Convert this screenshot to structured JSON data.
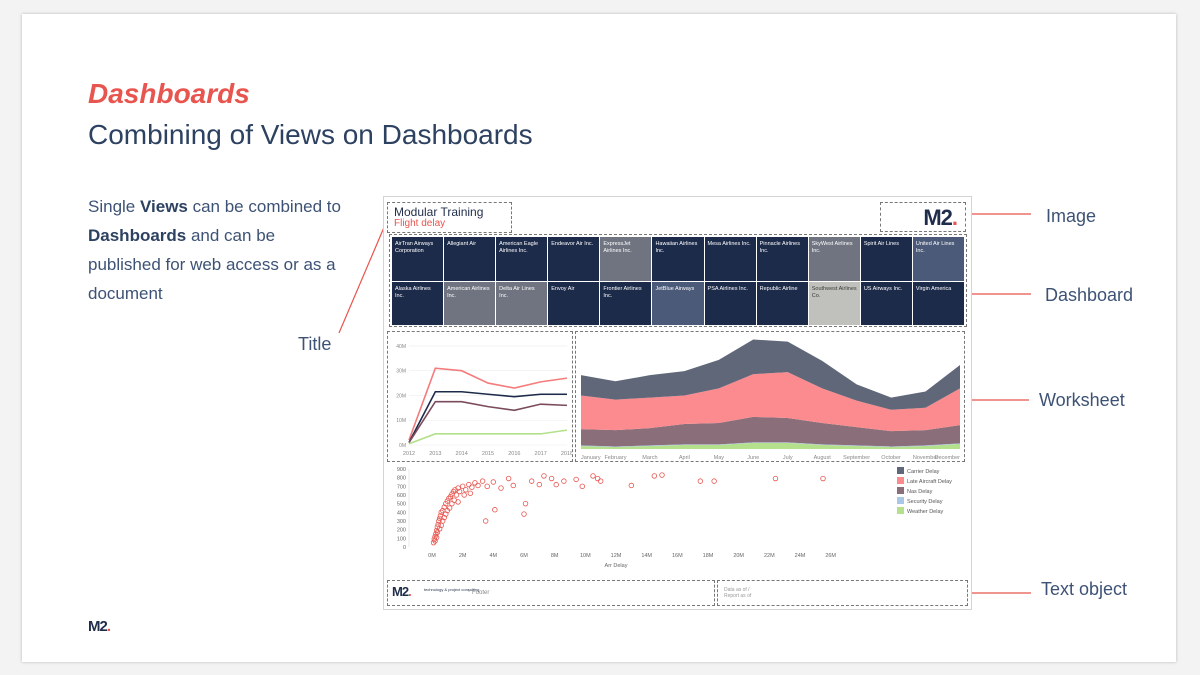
{
  "slide": {
    "kicker": "Dashboards",
    "title": "Combining of Views on Dashboards",
    "body": {
      "p1": "Single ",
      "b1": "Views",
      "p2": " can be combined to ",
      "b2": "Dashboards",
      "p3": " and can be published for web access or as a document"
    },
    "footer_logo": "M2",
    "footer_logo_dot": "."
  },
  "callouts": {
    "image": "Image",
    "dashboard": "Dashboard",
    "worksheet": "Worksheet",
    "text_object": "Text object",
    "title": "Title"
  },
  "dashboard": {
    "title": "Modular Training",
    "subtitle": "Flight delay",
    "logo": "M2",
    "logo_dot": ".",
    "tiles": [
      {
        "label": "AirTran Airways Corporation",
        "color": "#1d2b4a"
      },
      {
        "label": "Allegiant Air",
        "color": "#1d2b4a"
      },
      {
        "label": "American Eagle Airlines Inc.",
        "color": "#1d2b4a"
      },
      {
        "label": "Endeavor Air Inc.",
        "color": "#1d2b4a"
      },
      {
        "label": "ExpressJet Airlines Inc.",
        "color": "#6f7480"
      },
      {
        "label": "Hawaiian Airlines Inc.",
        "color": "#1d2b4a"
      },
      {
        "label": "Mesa Airlines Inc.",
        "color": "#1d2b4a"
      },
      {
        "label": "Pinnacle Airlines Inc.",
        "color": "#1d2b4a"
      },
      {
        "label": "SkyWest Airlines Inc.",
        "color": "#6f7480"
      },
      {
        "label": "Spirit Air Lines",
        "color": "#1d2b4a"
      },
      {
        "label": "United Air Lines Inc.",
        "color": "#4b5a78"
      },
      {
        "label": "Alaska Airlines Inc.",
        "color": "#1d2b4a"
      },
      {
        "label": "American Airlines Inc.",
        "color": "#6f7480"
      },
      {
        "label": "Delta Air Lines Inc.",
        "color": "#6f7480"
      },
      {
        "label": "Envoy Air",
        "color": "#1d2b4a"
      },
      {
        "label": "Frontier Airlines Inc.",
        "color": "#1d2b4a"
      },
      {
        "label": "JetBlue Airways",
        "color": "#4b5a78"
      },
      {
        "label": "PSA Airlines Inc.",
        "color": "#1d2b4a"
      },
      {
        "label": "Republic Airline",
        "color": "#1d2b4a"
      },
      {
        "label": "Southwest Airlines Co.",
        "color": "#c0c0bc",
        "text_color": "#3a3a3a"
      },
      {
        "label": "US Airways Inc.",
        "color": "#1d2b4a"
      },
      {
        "label": "Virgin America",
        "color": "#1d2b4a"
      }
    ],
    "footer_logo": "M2",
    "footer_logo_dot": ".",
    "footer_tagline": "technology & project consulting",
    "footer_text": "* Footer",
    "text_object": "Data as of /\nReport as of"
  },
  "chart_data": [
    {
      "type": "line",
      "x": [
        "2012",
        "2013",
        "2014",
        "2015",
        "2016",
        "2017",
        "2018"
      ],
      "y_ticks": [
        "0M",
        "10M",
        "20M",
        "30M",
        "40M"
      ],
      "ylim": [
        0,
        42
      ],
      "series": [
        {
          "values": [
            2,
            31,
            30,
            25,
            23,
            25.5,
            27
          ],
          "color": "#f47c7c"
        },
        {
          "values": [
            1,
            21.5,
            21.5,
            20.5,
            19.5,
            20.5,
            20.5
          ],
          "color": "#1d2b4a"
        },
        {
          "values": [
            1,
            17.5,
            17.5,
            15.5,
            14,
            16.5,
            16
          ],
          "color": "#7a4b5c"
        },
        {
          "values": [
            0.5,
            4.5,
            4.5,
            4.5,
            4.5,
            4.5,
            6
          ],
          "color": "#b3e08a"
        }
      ]
    },
    {
      "type": "area",
      "categories": [
        "January",
        "February",
        "March",
        "April",
        "May",
        "June",
        "July",
        "August",
        "September",
        "October",
        "November",
        "December"
      ],
      "ylim": [
        0,
        11
      ],
      "series": [
        {
          "name": "Weather Delay",
          "values": [
            0.3,
            0.2,
            0.3,
            0.4,
            0.4,
            0.6,
            0.6,
            0.4,
            0.3,
            0.2,
            0.3,
            0.5
          ],
          "color": "#b5e08c"
        },
        {
          "name": "Security Delay",
          "values": [
            0.05,
            0.05,
            0.05,
            0.05,
            0.05,
            0.05,
            0.05,
            0.05,
            0.05,
            0.05,
            0.05,
            0.05
          ],
          "color": "#a9c8e8"
        },
        {
          "name": "Nas Delay",
          "values": [
            1.6,
            1.6,
            1.7,
            2.0,
            2.1,
            2.5,
            2.4,
            2.1,
            1.8,
            1.5,
            1.5,
            1.8
          ],
          "color": "#8a6e7a"
        },
        {
          "name": "Late Aircraft Delay",
          "values": [
            3.3,
            3.0,
            3.0,
            2.8,
            3.4,
            4.2,
            4.5,
            3.4,
            2.6,
            2.1,
            2.2,
            3.6
          ],
          "color": "#fb8b8e"
        },
        {
          "name": "Carrier Delay",
          "values": [
            2.0,
            1.8,
            2.2,
            2.4,
            2.8,
            3.4,
            3.0,
            2.7,
            1.6,
            1.2,
            1.6,
            2.3
          ],
          "color": "#5f6779"
        }
      ],
      "legend": "right"
    },
    {
      "type": "scatter",
      "xlabel": "Arr Delay",
      "x_ticks": [
        "0M",
        "2M",
        "4M",
        "6M",
        "8M",
        "10M",
        "12M",
        "14M",
        "16M",
        "18M",
        "20M",
        "22M",
        "24M",
        "26M"
      ],
      "y_ticks": [
        "0",
        "100",
        "200",
        "300",
        "400",
        "500",
        "600",
        "700",
        "800",
        "900"
      ],
      "xlim": [
        -1.5,
        30
      ],
      "ylim": [
        0,
        900
      ],
      "color": "#e8544e",
      "points": [
        [
          0.1,
          50
        ],
        [
          0.15,
          90
        ],
        [
          0.2,
          120
        ],
        [
          0.25,
          150
        ],
        [
          0.3,
          190
        ],
        [
          0.35,
          230
        ],
        [
          0.4,
          260
        ],
        [
          0.45,
          300
        ],
        [
          0.5,
          330
        ],
        [
          0.55,
          360
        ],
        [
          0.6,
          400
        ],
        [
          0.7,
          420
        ],
        [
          0.8,
          460
        ],
        [
          0.9,
          500
        ],
        [
          1.0,
          530
        ],
        [
          1.1,
          560
        ],
        [
          1.2,
          580
        ],
        [
          1.3,
          610
        ],
        [
          1.4,
          640
        ],
        [
          1.5,
          660
        ],
        [
          1.6,
          600
        ],
        [
          1.7,
          680
        ],
        [
          1.8,
          640
        ],
        [
          2.0,
          700
        ],
        [
          2.2,
          660
        ],
        [
          2.4,
          720
        ],
        [
          2.6,
          690
        ],
        [
          2.8,
          740
        ],
        [
          3.0,
          710
        ],
        [
          3.3,
          760
        ],
        [
          3.6,
          700
        ],
        [
          4.0,
          750
        ],
        [
          4.5,
          680
        ],
        [
          0.2,
          70
        ],
        [
          0.3,
          110
        ],
        [
          0.35,
          170
        ],
        [
          0.5,
          210
        ],
        [
          0.6,
          250
        ],
        [
          0.7,
          300
        ],
        [
          0.8,
          340
        ],
        [
          0.9,
          380
        ],
        [
          1.0,
          420
        ],
        [
          1.15,
          450
        ],
        [
          1.3,
          500
        ],
        [
          1.45,
          540
        ],
        [
          1.7,
          520
        ],
        [
          2.1,
          600
        ],
        [
          2.5,
          620
        ],
        [
          3.5,
          300
        ],
        [
          4.1,
          430
        ],
        [
          5.0,
          790
        ],
        [
          5.3,
          710
        ],
        [
          6.0,
          380
        ],
        [
          6.1,
          500
        ],
        [
          6.5,
          760
        ],
        [
          7.0,
          720
        ],
        [
          7.3,
          820
        ],
        [
          7.8,
          790
        ],
        [
          8.1,
          720
        ],
        [
          8.6,
          760
        ],
        [
          9.4,
          780
        ],
        [
          9.8,
          700
        ],
        [
          10.5,
          820
        ],
        [
          10.8,
          790
        ],
        [
          11.0,
          760
        ],
        [
          13.0,
          710
        ],
        [
          14.5,
          820
        ],
        [
          15.0,
          830
        ],
        [
          17.5,
          760
        ],
        [
          18.4,
          760
        ],
        [
          22.4,
          790
        ],
        [
          25.5,
          790
        ]
      ]
    }
  ]
}
